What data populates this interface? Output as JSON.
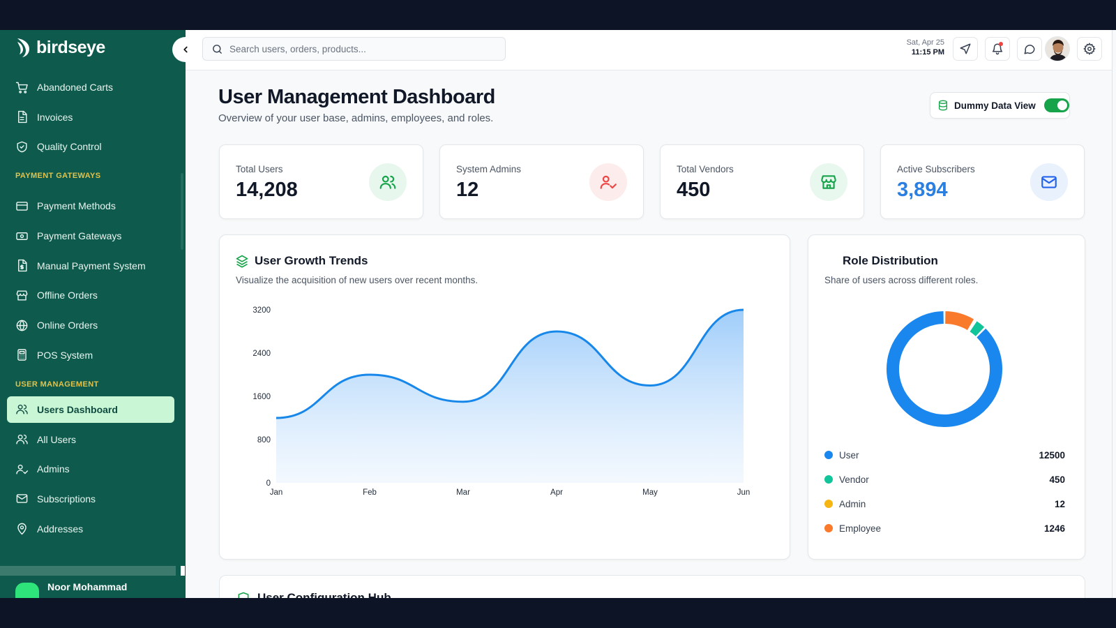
{
  "app": {
    "name": "birdseye"
  },
  "sidebar": {
    "items_top": [
      {
        "label": "Abandoned Carts",
        "icon": "cart-icon"
      },
      {
        "label": "Invoices",
        "icon": "invoice-icon"
      },
      {
        "label": "Quality Control",
        "icon": "shield-icon"
      }
    ],
    "section_payment": "PAYMENT GATEWAYS",
    "items_payment": [
      {
        "label": "Payment Methods",
        "icon": "credit-card-icon"
      },
      {
        "label": "Payment Gateways",
        "icon": "banknote-icon"
      },
      {
        "label": "Manual Payment System",
        "icon": "file-dollar-icon"
      },
      {
        "label": "Offline Orders",
        "icon": "store-icon"
      },
      {
        "label": "Online Orders",
        "icon": "globe-icon"
      },
      {
        "label": "POS System",
        "icon": "calculator-icon"
      }
    ],
    "section_users": "USER MANAGEMENT",
    "items_users": [
      {
        "label": "Users Dashboard",
        "icon": "users-icon",
        "active": true
      },
      {
        "label": "All Users",
        "icon": "users-icon"
      },
      {
        "label": "Admins",
        "icon": "user-check-icon"
      },
      {
        "label": "Subscriptions",
        "icon": "mail-icon"
      },
      {
        "label": "Addresses",
        "icon": "map-pin-icon"
      }
    ],
    "profile_name": "Noor Mohammad"
  },
  "topbar": {
    "search_placeholder": "Search users, orders, products...",
    "date": "Sat, Apr 25",
    "time": "11:15 PM"
  },
  "page": {
    "title": "User Management Dashboard",
    "subtitle": "Overview of your user base, admins, employees, and roles.",
    "toggle_label": "Dummy Data View",
    "toggle_on": true
  },
  "stats": [
    {
      "label": "Total Users",
      "value": "14,208",
      "icon": "users-icon",
      "color": "#16a34a",
      "bg": "#e8f7ee",
      "value_color": "#111827"
    },
    {
      "label": "System Admins",
      "value": "12",
      "icon": "user-check-icon",
      "color": "#ef4444",
      "bg": "#fdecec",
      "value_color": "#111827"
    },
    {
      "label": "Total Vendors",
      "value": "450",
      "icon": "store-icon",
      "color": "#16a34a",
      "bg": "#e9f8ee",
      "value_color": "#111827"
    },
    {
      "label": "Active Subscribers",
      "value": "3,894",
      "icon": "mail-icon",
      "color": "#2563eb",
      "bg": "#e8f1fc",
      "value_color": "#2b7fe0"
    }
  ],
  "growth": {
    "title": "User Growth Trends",
    "subtitle": "Visualize the acquisition of new users over recent months."
  },
  "roles": {
    "title": "Role Distribution",
    "subtitle": "Share of users across different roles."
  },
  "bottom": {
    "title": "User Configuration Hub"
  },
  "chart_data": [
    {
      "type": "area",
      "categories": [
        "Jan",
        "Feb",
        "Mar",
        "Apr",
        "May",
        "Jun"
      ],
      "series": [
        {
          "values": [
            1200,
            2000,
            1500,
            2800,
            1800,
            3200
          ]
        }
      ],
      "yticks": [
        "0",
        "800",
        "1600",
        "2400",
        "3200"
      ],
      "ylim": [
        0,
        3200
      ],
      "color": "#1887ea",
      "grid": false
    },
    {
      "type": "pie",
      "donut": true,
      "slices": [
        {
          "name": "User",
          "value": 12500,
          "display": "12500",
          "color": "#1a87ee"
        },
        {
          "name": "Vendor",
          "value": 450,
          "display": "450",
          "color": "#12c49a"
        },
        {
          "name": "Admin",
          "value": 12,
          "display": "12",
          "color": "#f5b614"
        },
        {
          "name": "Employee",
          "value": 1246,
          "display": "1246",
          "color": "#f97a2a"
        }
      ]
    }
  ]
}
